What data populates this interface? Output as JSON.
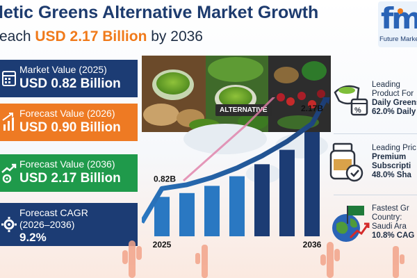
{
  "header": {
    "title": "letic Greens Alternative Market Growth",
    "subtitle_prefix": "each ",
    "subtitle_highlight": "USD 2.17 Billion",
    "subtitle_suffix": " by 2036"
  },
  "logo": {
    "name": "Future Market"
  },
  "cards": [
    {
      "label": "Market Value (2025)",
      "value": "USD 0.82 Billion",
      "icon": "calendar-icon",
      "color": "#1c3c74"
    },
    {
      "label": "Forecast Value (2026)",
      "value": "USD 0.90 Billion",
      "icon": "growth-arrow-icon",
      "color": "#ee7a23"
    },
    {
      "label": "Forecast Value (2036)",
      "value": "USD 2.17 Billion",
      "icon": "trend-gear-icon",
      "color": "#1f9a4b"
    },
    {
      "label": "Forecast CAGR",
      "label2": "(2026–2036)",
      "value": "9.2%",
      "icon": "gear-icon",
      "color": "#1c3c74"
    }
  ],
  "tag": "ALTERNATIVE",
  "chart_data": {
    "type": "bar",
    "categories": [
      "2025",
      "",
      "",
      "",
      "",
      "",
      "2036"
    ],
    "values": [
      0.82,
      0.9,
      1.05,
      1.25,
      1.5,
      1.8,
      2.17
    ],
    "annotations": {
      "first": "0.82B",
      "last": "2.17B"
    },
    "xlabels": [
      "2025",
      "2036"
    ],
    "colors": [
      "#2a78c2",
      "#1c3c74"
    ]
  },
  "sidebar": [
    {
      "line1": "Leading",
      "line2": "Product For",
      "line3": "Daily Greens",
      "line4": "62.0% Daily",
      "icon": "scoop-calendar-icon"
    },
    {
      "line1": "Leading Pric",
      "line2": "Premium",
      "line3": "Subscripti",
      "line4": "48.0% Sha",
      "icon": "supplement-jar-icon"
    },
    {
      "line1": "Fastest Gr",
      "line2": "Country:",
      "line3": "Saudi Ara",
      "line4": "10.8% CAG",
      "icon": "globe-flag-icon"
    }
  ]
}
